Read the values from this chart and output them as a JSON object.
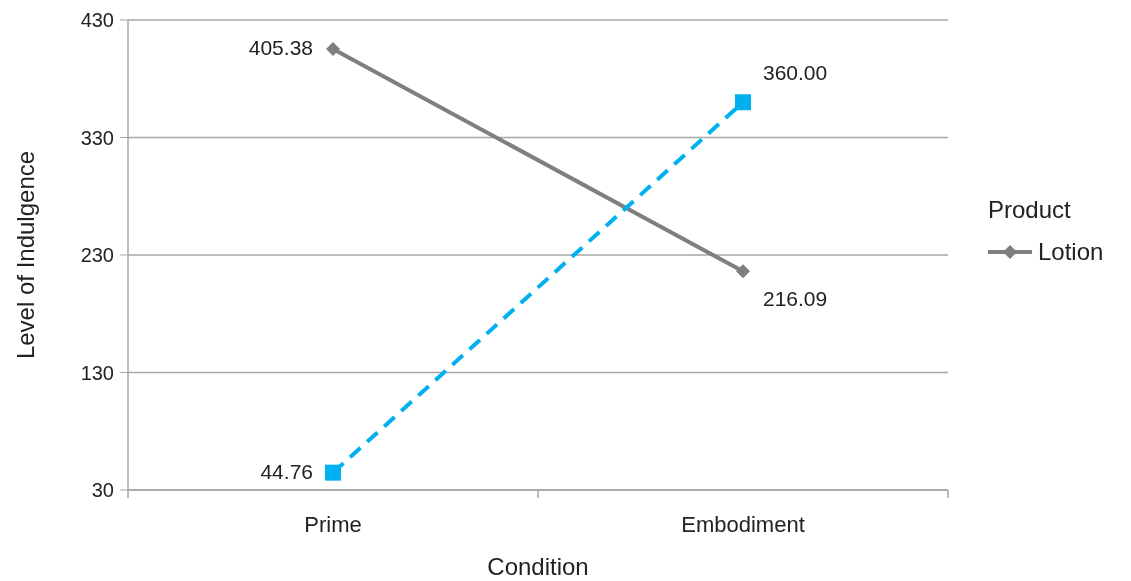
{
  "chart_data": {
    "type": "line",
    "xlabel": "Condition",
    "ylabel": "Level of Indulgence",
    "legend_title": "Product",
    "categories": [
      "Prime",
      "Embodiment"
    ],
    "series": [
      {
        "name": "Lotion",
        "color": "#7f7f7f",
        "values": [
          405.38,
          216.09
        ],
        "value_labels": [
          "405.38",
          "216.09"
        ],
        "marker": "diamond",
        "line_style": "solid"
      },
      {
        "color": "#00b0f0",
        "values": [
          44.76,
          360.0
        ],
        "value_labels": [
          "44.76",
          "360.00"
        ],
        "marker": "square",
        "line_style": "dashed"
      }
    ],
    "ylim": [
      30,
      430
    ],
    "yticks": [
      30,
      130,
      230,
      330,
      430
    ],
    "grid": "y",
    "legend": "right"
  }
}
